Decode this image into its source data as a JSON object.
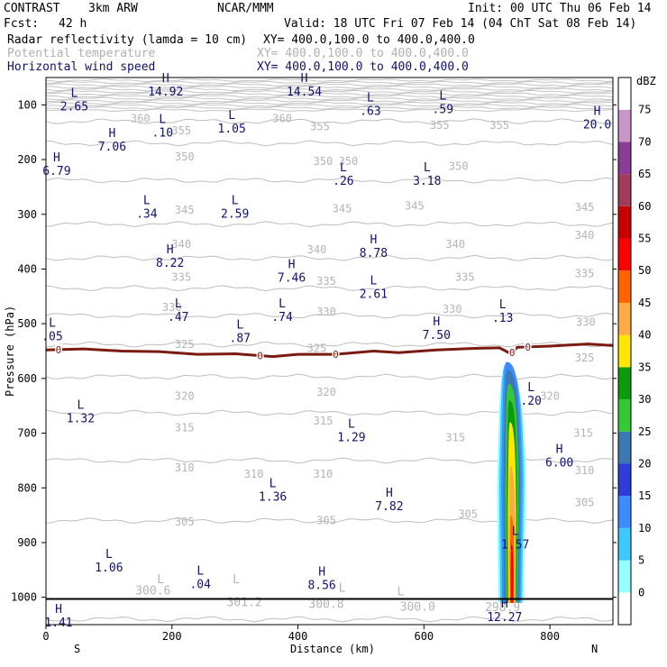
{
  "header": {
    "model": "CONTRAST",
    "resolution": "3km ARW",
    "center": "NCAR/MMM",
    "init": "Init: 00 UTC Thu 06 Feb 14",
    "fcst_label": "Fcst:",
    "fcst_value": "42 h",
    "valid": "Valid: 18 UTC Fri 07 Feb 14 (04 ChT Sat 08 Feb 14)",
    "fields": [
      {
        "name": "Radar reflectivity (lamda = 10 cm)",
        "xy": "XY= 400.0,100.0 to 400.0,400.0",
        "color": "#000000"
      },
      {
        "name": "Potential temperature",
        "xy": "XY= 400.0,100.0 to 400.0,400.0",
        "color": "#b0b0b0"
      },
      {
        "name": "Horizontal wind speed",
        "xy": "XY= 400.0,100.0 to 400.0,400.0",
        "color": "#10106a"
      }
    ]
  },
  "chart_data": {
    "type": "heatmap",
    "xlabel": "Distance (km)",
    "ylabel": "Pressure (hPa)",
    "xlim": [
      0,
      900
    ],
    "ylim": [
      1050,
      50
    ],
    "x_ticks": [
      0,
      200,
      400,
      600,
      800
    ],
    "y_ticks": [
      100,
      200,
      300,
      400,
      500,
      600,
      700,
      800,
      900,
      1000
    ],
    "x_end_labels": {
      "left": "S",
      "right": "N"
    },
    "colorbar": {
      "unit": "dBZ",
      "levels": [
        0,
        5,
        10,
        15,
        20,
        25,
        30,
        35,
        40,
        45,
        50,
        55,
        60,
        65,
        70,
        75
      ],
      "colors": [
        "#ffffff",
        "#96ffff",
        "#3ec8ff",
        "#3c8cff",
        "#2e3cdc",
        "#3c78b4",
        "#34c834",
        "#0a9c0a",
        "#ffe600",
        "#ffaa46",
        "#ff6400",
        "#ff0000",
        "#c80000",
        "#a03c5a",
        "#8c3c96",
        "#c896c8",
        "#ffffff"
      ]
    },
    "theta_contours": [
      {
        "value": 300.6,
        "p": 1040
      },
      {
        "value": 305,
        "p": 860
      },
      {
        "value": 310,
        "p": 750
      },
      {
        "value": 315,
        "p": 663
      },
      {
        "value": 320,
        "p": 597
      },
      {
        "value": 325,
        "p": 538
      },
      {
        "value": 330,
        "p": 485
      },
      {
        "value": 335,
        "p": 435
      },
      {
        "value": 340,
        "p": 380
      },
      {
        "value": 345,
        "p": 318
      },
      {
        "value": 350,
        "p": 238
      },
      {
        "value": 355,
        "p": 170
      },
      {
        "value": 360,
        "p": 130
      }
    ],
    "theta_labels": [
      {
        "text": "360",
        "x": 150,
        "p": 125
      },
      {
        "text": "360",
        "x": 375,
        "p": 125
      },
      {
        "text": "355",
        "x": 215,
        "p": 147
      },
      {
        "text": "355",
        "x": 435,
        "p": 140
      },
      {
        "text": "355",
        "x": 625,
        "p": 137
      },
      {
        "text": "355",
        "x": 720,
        "p": 137
      },
      {
        "text": "350",
        "x": 220,
        "p": 195
      },
      {
        "text": "350",
        "x": 440,
        "p": 203
      },
      {
        "text": "350",
        "x": 480,
        "p": 203
      },
      {
        "text": "350",
        "x": 655,
        "p": 212
      },
      {
        "text": "345",
        "x": 220,
        "p": 292
      },
      {
        "text": "345",
        "x": 470,
        "p": 290
      },
      {
        "text": "345",
        "x": 585,
        "p": 285
      },
      {
        "text": "345",
        "x": 855,
        "p": 287
      },
      {
        "text": "340",
        "x": 215,
        "p": 355
      },
      {
        "text": "340",
        "x": 430,
        "p": 365
      },
      {
        "text": "340",
        "x": 650,
        "p": 355
      },
      {
        "text": "340",
        "x": 855,
        "p": 338
      },
      {
        "text": "335",
        "x": 215,
        "p": 415
      },
      {
        "text": "335",
        "x": 445,
        "p": 422
      },
      {
        "text": "335",
        "x": 665,
        "p": 415
      },
      {
        "text": "335",
        "x": 855,
        "p": 408
      },
      {
        "text": "330",
        "x": 200,
        "p": 470
      },
      {
        "text": "330",
        "x": 445,
        "p": 478
      },
      {
        "text": "330",
        "x": 645,
        "p": 473
      },
      {
        "text": "330",
        "x": 857,
        "p": 497
      },
      {
        "text": "325",
        "x": 220,
        "p": 538
      },
      {
        "text": "325",
        "x": 430,
        "p": 545
      },
      {
        "text": "325",
        "x": 855,
        "p": 562
      },
      {
        "text": "320",
        "x": 220,
        "p": 632
      },
      {
        "text": "320",
        "x": 445,
        "p": 625
      },
      {
        "text": "320",
        "x": 800,
        "p": 632
      },
      {
        "text": "315",
        "x": 220,
        "p": 690
      },
      {
        "text": "315",
        "x": 440,
        "p": 678
      },
      {
        "text": "315",
        "x": 650,
        "p": 708
      },
      {
        "text": "315",
        "x": 853,
        "p": 700
      },
      {
        "text": "310",
        "x": 220,
        "p": 763
      },
      {
        "text": "310",
        "x": 330,
        "p": 775
      },
      {
        "text": "310",
        "x": 440,
        "p": 775
      },
      {
        "text": "310",
        "x": 855,
        "p": 768
      },
      {
        "text": "305",
        "x": 220,
        "p": 862
      },
      {
        "text": "305",
        "x": 445,
        "p": 860
      },
      {
        "text": "305",
        "x": 670,
        "p": 848
      },
      {
        "text": "305",
        "x": 855,
        "p": 827
      }
    ],
    "surface_theta_labels": [
      {
        "text": "300.6",
        "x": 170,
        "p": 988
      },
      {
        "text": "301.2",
        "x": 315,
        "p": 1010
      },
      {
        "text": "300.8",
        "x": 445,
        "p": 1013
      },
      {
        "text": "300.0",
        "x": 590,
        "p": 1018
      },
      {
        "text": "298.9",
        "x": 725,
        "p": 1019
      }
    ],
    "surface_theta_letters": [
      {
        "text": "L",
        "x": 182,
        "p": 968
      },
      {
        "text": "L",
        "x": 302,
        "p": 968
      },
      {
        "text": "L",
        "x": 470,
        "p": 983
      },
      {
        "text": "L",
        "x": 563,
        "p": 990
      }
    ],
    "zero_isotherm": {
      "label": "0",
      "points": [
        [
          0,
          548
        ],
        [
          60,
          546
        ],
        [
          120,
          550
        ],
        [
          180,
          551
        ],
        [
          240,
          556
        ],
        [
          300,
          555
        ],
        [
          360,
          560
        ],
        [
          400,
          556
        ],
        [
          460,
          556
        ],
        [
          520,
          550
        ],
        [
          560,
          553
        ],
        [
          620,
          548
        ],
        [
          680,
          545
        ],
        [
          720,
          544
        ],
        [
          738,
          555
        ],
        [
          748,
          543
        ],
        [
          800,
          541
        ],
        [
          860,
          537
        ],
        [
          900,
          540
        ]
      ],
      "label_x": [
        20,
        340,
        460,
        740,
        765
      ]
    },
    "wind_extrema": [
      {
        "type": "L",
        "value": "2.65",
        "x": 45,
        "p": 92
      },
      {
        "type": "H",
        "value": "14.92",
        "x": 190,
        "p": 65
      },
      {
        "type": "H",
        "value": "14.54",
        "x": 410,
        "p": 65
      },
      {
        "type": "L",
        "value": ".63",
        "x": 515,
        "p": 100
      },
      {
        "type": "L",
        "value": ".59",
        "x": 630,
        "p": 97
      },
      {
        "type": "H",
        "value": "20.0",
        "x": 875,
        "p": 125
      },
      {
        "type": "L",
        "value": ".10",
        "x": 185,
        "p": 140
      },
      {
        "type": "L",
        "value": "1.05",
        "x": 295,
        "p": 132
      },
      {
        "type": "H",
        "value": "7.06",
        "x": 105,
        "p": 165
      },
      {
        "type": "H",
        "value": "6.79",
        "x": 17,
        "p": 210
      },
      {
        "type": "L",
        "value": ".26",
        "x": 472,
        "p": 228
      },
      {
        "type": "L",
        "value": "3.18",
        "x": 605,
        "p": 228
      },
      {
        "type": "L",
        "value": ".34",
        "x": 160,
        "p": 288
      },
      {
        "type": "L",
        "value": "2.59",
        "x": 300,
        "p": 288
      },
      {
        "type": "H",
        "value": "8.78",
        "x": 520,
        "p": 360
      },
      {
        "type": "H",
        "value": "8.22",
        "x": 197,
        "p": 378
      },
      {
        "type": "H",
        "value": "7.46",
        "x": 390,
        "p": 405
      },
      {
        "type": "L",
        "value": "2.61",
        "x": 520,
        "p": 435
      },
      {
        "type": "L",
        "value": ".47",
        "x": 210,
        "p": 477
      },
      {
        "type": "L",
        "value": ".74",
        "x": 375,
        "p": 477
      },
      {
        "type": "L",
        "value": ".13",
        "x": 725,
        "p": 478
      },
      {
        "type": "L",
        "value": ".05",
        "x": 10,
        "p": 512
      },
      {
        "type": "L",
        "value": ".87",
        "x": 308,
        "p": 515
      },
      {
        "type": "H",
        "value": "7.50",
        "x": 620,
        "p": 510
      },
      {
        "type": "L",
        "value": ".20",
        "x": 770,
        "p": 630
      },
      {
        "type": "L",
        "value": "1.32",
        "x": 55,
        "p": 662
      },
      {
        "type": "L",
        "value": "1.29",
        "x": 485,
        "p": 697
      },
      {
        "type": "H",
        "value": "6.00",
        "x": 815,
        "p": 743
      },
      {
        "type": "L",
        "value": "1.36",
        "x": 360,
        "p": 805
      },
      {
        "type": "H",
        "value": "7.82",
        "x": 545,
        "p": 823
      },
      {
        "type": "L",
        "value": "1.57",
        "x": 745,
        "p": 893
      },
      {
        "type": "L",
        "value": "1.06",
        "x": 100,
        "p": 935
      },
      {
        "type": "L",
        "value": ".04",
        "x": 245,
        "p": 965
      },
      {
        "type": "H",
        "value": "8.56",
        "x": 438,
        "p": 967
      },
      {
        "type": "H",
        "value": "12.27",
        "x": 728,
        "p": 1025
      },
      {
        "type": "H",
        "value": "1.41",
        "x": 20,
        "p": 1035
      }
    ],
    "reflectivity_core": {
      "x_range": [
        715,
        770
      ],
      "top_p": 570,
      "bottom_p": 1010
    }
  }
}
